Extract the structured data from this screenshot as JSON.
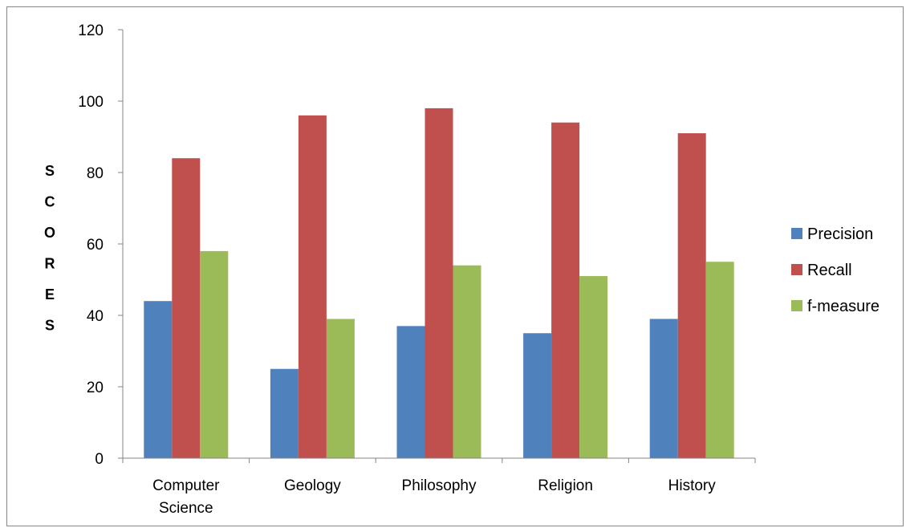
{
  "chart_data": {
    "type": "bar",
    "title": "",
    "xlabel": "",
    "ylabel": "SCORES",
    "ylim": [
      0,
      120
    ],
    "yticks": [
      0,
      20,
      40,
      60,
      80,
      100,
      120
    ],
    "categories": [
      "Computer Science",
      "Geology",
      "Philosophy",
      "Religion",
      "History"
    ],
    "category_label_lines": [
      [
        "Computer",
        "Science"
      ],
      [
        "Geology"
      ],
      [
        "Philosophy"
      ],
      [
        "Religion"
      ],
      [
        "History"
      ]
    ],
    "series": [
      {
        "name": "Precision",
        "color": "#4F81BD",
        "values": [
          44,
          25,
          37,
          35,
          39
        ]
      },
      {
        "name": "Recall",
        "color": "#C0504D",
        "values": [
          84,
          96,
          98,
          94,
          91
        ]
      },
      {
        "name": "f-measure",
        "color": "#9BBB59",
        "values": [
          58,
          39,
          54,
          51,
          55
        ]
      }
    ],
    "grid": false,
    "legend_position": "right"
  }
}
